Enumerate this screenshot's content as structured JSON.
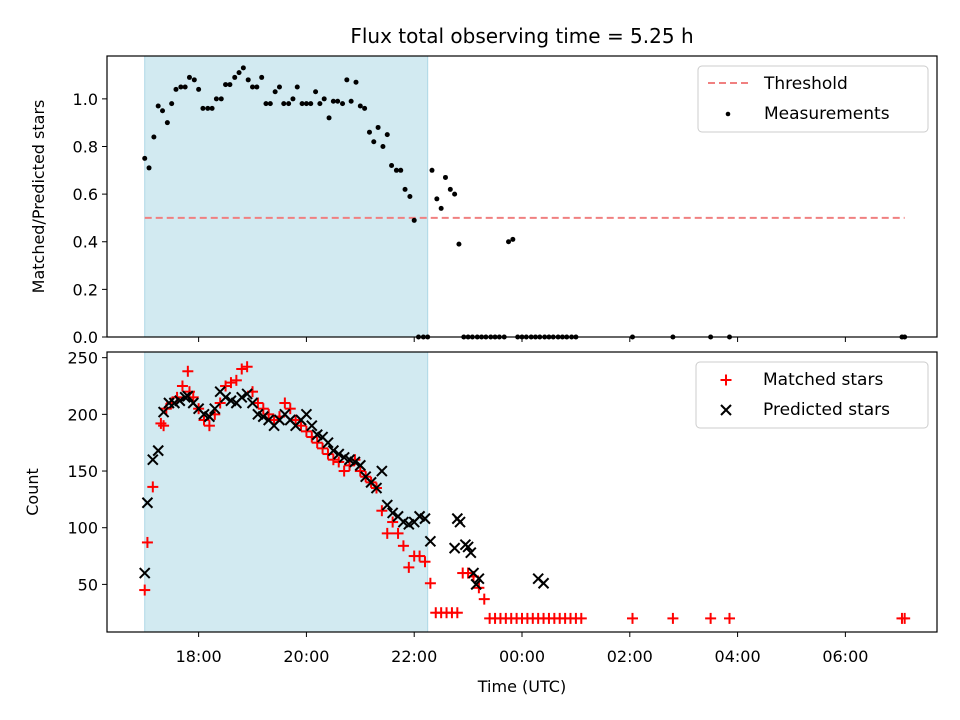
{
  "title": "Flux total observing time = 5.25 h",
  "colors": {
    "shade": "#add8e6",
    "threshold": "#f08080",
    "matched": "#ff0000",
    "predicted": "#000000",
    "measurement": "#000000"
  },
  "chart_data": [
    {
      "type": "scatter",
      "ylabel": "Matched/Predicted stars",
      "xlim": [
        16.3,
        31.7
      ],
      "ylim": [
        0,
        1.18
      ],
      "yticks": [
        0.0,
        0.2,
        0.4,
        0.6,
        0.8,
        1.0
      ],
      "ytick_labels": [
        "0.0",
        "0.2",
        "0.4",
        "0.6",
        "0.8",
        "1.0"
      ],
      "shaded_span": [
        17.0,
        22.25
      ],
      "legend": {
        "position": "upper right",
        "entries": [
          "Threshold",
          "Measurements"
        ]
      },
      "threshold": {
        "name": "Threshold",
        "x": [
          17.0,
          31.1
        ],
        "y": 0.5
      },
      "series": [
        {
          "name": "Measurements",
          "x": [
            17.0,
            17.08,
            17.17,
            17.25,
            17.33,
            17.42,
            17.5,
            17.58,
            17.67,
            17.75,
            17.83,
            17.92,
            18.0,
            18.08,
            18.17,
            18.25,
            18.33,
            18.42,
            18.5,
            18.58,
            18.67,
            18.75,
            18.83,
            18.92,
            19.0,
            19.08,
            19.17,
            19.25,
            19.33,
            19.42,
            19.5,
            19.58,
            19.67,
            19.75,
            19.83,
            19.92,
            20.0,
            20.08,
            20.17,
            20.25,
            20.33,
            20.42,
            20.5,
            20.58,
            20.67,
            20.75,
            20.83,
            20.92,
            21.0,
            21.08,
            21.17,
            21.25,
            21.33,
            21.42,
            21.5,
            21.58,
            21.67,
            21.75,
            21.83,
            21.92,
            22.0,
            22.08,
            22.17,
            22.25,
            22.33,
            22.42,
            22.5,
            22.58,
            22.67,
            22.75,
            22.83,
            22.92,
            23.0,
            23.08,
            23.17,
            23.25,
            23.33,
            23.42,
            23.5,
            23.58,
            23.67,
            23.75,
            23.83,
            23.92,
            24.0,
            24.08,
            24.17,
            24.25,
            24.33,
            24.42,
            24.5,
            24.58,
            24.67,
            24.75,
            24.83,
            24.92,
            25.0,
            26.05,
            26.8,
            27.5,
            27.85,
            31.05,
            31.1
          ],
          "y": [
            0.75,
            0.71,
            0.84,
            0.97,
            0.95,
            0.9,
            0.98,
            1.04,
            1.05,
            1.05,
            1.09,
            1.08,
            1.04,
            0.96,
            0.96,
            0.96,
            1.0,
            1.0,
            1.06,
            1.06,
            1.09,
            1.11,
            1.13,
            1.08,
            1.05,
            1.05,
            1.09,
            0.98,
            0.98,
            1.03,
            1.05,
            0.98,
            0.98,
            1.0,
            1.05,
            0.98,
            0.98,
            0.98,
            1.03,
            0.98,
            1.0,
            0.92,
            0.99,
            0.99,
            0.98,
            1.08,
            0.99,
            1.07,
            0.97,
            0.96,
            0.86,
            0.82,
            0.88,
            0.8,
            0.85,
            0.72,
            0.7,
            0.7,
            0.62,
            0.59,
            0.49,
            0.0,
            0.0,
            0.0,
            0.7,
            0.58,
            0.54,
            0.67,
            0.62,
            0.6,
            0.39,
            0.0,
            0.0,
            0.0,
            0.0,
            0.0,
            0.0,
            0.0,
            0.0,
            0.0,
            0.0,
            0.4,
            0.41,
            0.0,
            0.0,
            0.0,
            0.0,
            0.0,
            0.0,
            0.0,
            0.0,
            0.0,
            0.0,
            0.0,
            0.0,
            0.0,
            0.0,
            0.0,
            0.0,
            0.0,
            0.0,
            0.0,
            0.0
          ]
        }
      ]
    },
    {
      "type": "scatter",
      "xlabel": "Time (UTC)",
      "ylabel": "Count",
      "xlim": [
        16.3,
        31.7
      ],
      "ylim": [
        8,
        255
      ],
      "yticks": [
        50,
        100,
        150,
        200,
        250
      ],
      "ytick_labels": [
        "50",
        "100",
        "150",
        "200",
        "250"
      ],
      "xticks": [
        18,
        20,
        22,
        24,
        26,
        28,
        30
      ],
      "xtick_labels": [
        "18:00",
        "20:00",
        "22:00",
        "00:00",
        "02:00",
        "04:00",
        "06:00"
      ],
      "shaded_span": [
        17.0,
        22.25
      ],
      "legend": {
        "position": "upper right",
        "entries": [
          "Matched stars",
          "Predicted stars"
        ]
      },
      "series": [
        {
          "name": "Matched stars",
          "marker": "plus",
          "x": [
            17.0,
            17.05,
            17.15,
            17.3,
            17.35,
            17.4,
            17.5,
            17.6,
            17.7,
            17.8,
            17.83,
            17.9,
            18.0,
            18.1,
            18.2,
            18.3,
            18.4,
            18.5,
            18.6,
            18.7,
            18.8,
            18.9,
            19.0,
            19.1,
            19.2,
            19.3,
            19.4,
            19.5,
            19.6,
            19.7,
            19.8,
            19.9,
            20.0,
            20.1,
            20.2,
            20.3,
            20.4,
            20.5,
            20.6,
            20.7,
            20.8,
            20.9,
            21.0,
            21.1,
            21.2,
            21.3,
            21.4,
            21.5,
            21.6,
            21.7,
            21.8,
            21.9,
            22.0,
            22.1,
            22.2,
            22.3,
            22.4,
            22.5,
            22.6,
            22.7,
            22.8,
            22.9,
            23.0,
            23.1,
            23.2,
            23.3,
            23.4,
            23.5,
            23.6,
            23.7,
            23.8,
            23.9,
            24.0,
            24.1,
            24.2,
            24.3,
            24.4,
            24.5,
            24.6,
            24.7,
            24.8,
            24.9,
            25.0,
            25.1,
            26.05,
            26.8,
            27.5,
            27.85,
            31.05,
            31.1
          ],
          "y": [
            45,
            87,
            136,
            192,
            190,
            205,
            210,
            215,
            225,
            238,
            220,
            215,
            205,
            195,
            190,
            200,
            210,
            225,
            228,
            230,
            240,
            242,
            220,
            210,
            205,
            200,
            195,
            198,
            210,
            205,
            195,
            190,
            185,
            180,
            175,
            170,
            165,
            160,
            158,
            150,
            155,
            160,
            150,
            145,
            140,
            135,
            115,
            95,
            105,
            95,
            84,
            65,
            75,
            75,
            70,
            51,
            25,
            25,
            25,
            25,
            25,
            60,
            60,
            57,
            47,
            37,
            20,
            20,
            20,
            20,
            20,
            20,
            20,
            20,
            20,
            20,
            20,
            20,
            20,
            20,
            20,
            20,
            20,
            20,
            20,
            20,
            20,
            20,
            20,
            20
          ]
        },
        {
          "name": "Predicted stars",
          "marker": "x",
          "x": [
            17.0,
            17.05,
            17.15,
            17.25,
            17.35,
            17.45,
            17.55,
            17.65,
            17.75,
            17.8,
            17.9,
            18.0,
            18.1,
            18.2,
            18.3,
            18.4,
            18.5,
            18.6,
            18.7,
            18.8,
            18.9,
            19.0,
            19.1,
            19.2,
            19.3,
            19.4,
            19.5,
            19.6,
            19.7,
            19.8,
            19.9,
            20.0,
            20.1,
            20.2,
            20.3,
            20.4,
            20.5,
            20.6,
            20.7,
            20.8,
            20.9,
            21.0,
            21.1,
            21.2,
            21.3,
            21.4,
            21.5,
            21.6,
            21.7,
            21.8,
            21.9,
            22.0,
            22.1,
            22.2,
            22.3,
            22.75,
            22.8,
            22.85,
            22.95,
            23.0,
            23.05,
            23.1,
            23.15,
            23.2,
            24.3,
            24.4
          ],
          "y": [
            60,
            122,
            160,
            168,
            202,
            210,
            210,
            212,
            215,
            216,
            210,
            205,
            200,
            198,
            205,
            220,
            215,
            212,
            210,
            215,
            218,
            210,
            200,
            198,
            195,
            190,
            195,
            200,
            195,
            190,
            195,
            200,
            190,
            182,
            180,
            175,
            168,
            165,
            162,
            160,
            158,
            155,
            145,
            140,
            135,
            150,
            120,
            113,
            110,
            105,
            103,
            105,
            110,
            108,
            88,
            82,
            108,
            105,
            85,
            83,
            78,
            60,
            50,
            55,
            55,
            51
          ]
        }
      ]
    }
  ]
}
